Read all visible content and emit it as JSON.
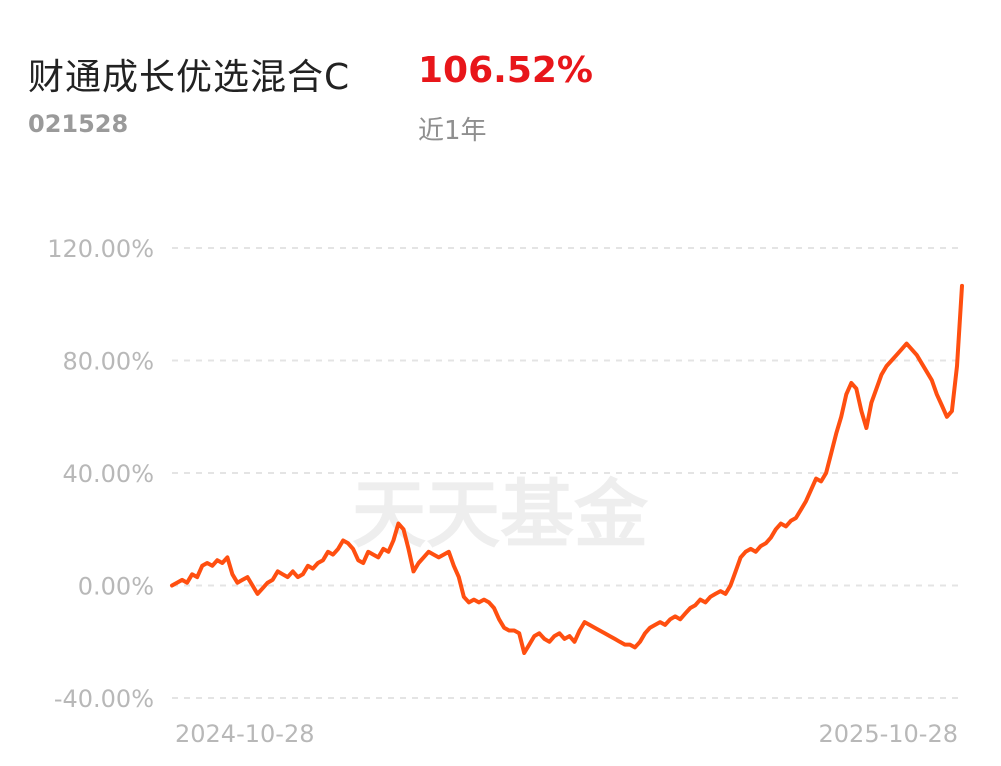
{
  "header": {
    "fund_name": "财通成长优选混合C",
    "fund_code": "021528",
    "return_value": "106.52%",
    "period_label": "近1年",
    "return_color": "#e8161a"
  },
  "watermark": "天天基金",
  "chart_data": {
    "type": "line",
    "title": "",
    "xlabel": "",
    "ylabel": "",
    "ylim": [
      -40,
      120
    ],
    "y_ticks": [
      -40,
      0,
      40,
      80,
      120
    ],
    "y_tick_labels": [
      "-40.00%",
      "0.00%",
      "40.00%",
      "80.00%",
      "120.00%"
    ],
    "x_tick_labels": [
      "2024-10-28",
      "2025-10-28"
    ],
    "x_range": [
      "2024-10-28",
      "2025-11-10"
    ],
    "grid": true,
    "line_color": "#ff4f10",
    "series": [
      {
        "values": [
          0,
          1,
          2,
          1,
          4,
          3,
          7,
          8,
          7,
          9,
          8,
          10,
          4,
          1,
          2,
          3,
          0,
          -3,
          -1,
          1,
          2,
          5,
          4,
          3,
          5,
          3,
          4,
          7,
          6,
          8,
          9,
          12,
          11,
          13,
          16,
          15,
          13,
          9,
          8,
          12,
          11,
          10,
          13,
          12,
          16,
          22,
          20,
          13,
          5,
          8,
          10,
          12,
          11,
          10,
          11,
          12,
          7,
          3,
          -4,
          -6,
          -5,
          -6,
          -5,
          -6,
          -8,
          -12,
          -15,
          -16,
          -16,
          -17,
          -24,
          -21,
          -18,
          -17,
          -19,
          -20,
          -18,
          -17,
          -19,
          -18,
          -20,
          -16,
          -13,
          -14,
          -15,
          -16,
          -17,
          -18,
          -19,
          -20,
          -21,
          -21,
          -22,
          -20,
          -17,
          -15,
          -14,
          -13,
          -14,
          -12,
          -11,
          -12,
          -10,
          -8,
          -7,
          -5,
          -6,
          -4,
          -3,
          -2,
          -3,
          0,
          5,
          10,
          12,
          13,
          12,
          14,
          15,
          17,
          20,
          22,
          21,
          23,
          24,
          27,
          30,
          34,
          38,
          37,
          40,
          47,
          54,
          60,
          68,
          72,
          70,
          62,
          56,
          65,
          70,
          75,
          78,
          80,
          82,
          84,
          86,
          84,
          82,
          79,
          76,
          73,
          68,
          64,
          60,
          62,
          78,
          106.52
        ]
      }
    ]
  }
}
